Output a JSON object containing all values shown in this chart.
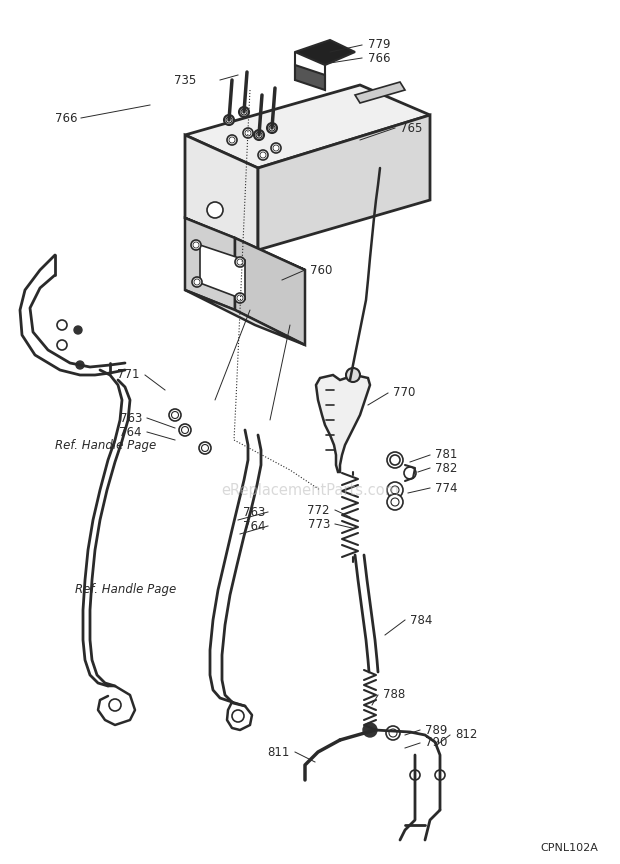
{
  "bg_color": "#ffffff",
  "line_color": "#2a2a2a",
  "text_color": "#2a2a2a",
  "watermark": "eReplacementParts.com",
  "diagram_code": "CPNL102A",
  "figsize": [
    6.2,
    8.64
  ],
  "dpi": 100
}
